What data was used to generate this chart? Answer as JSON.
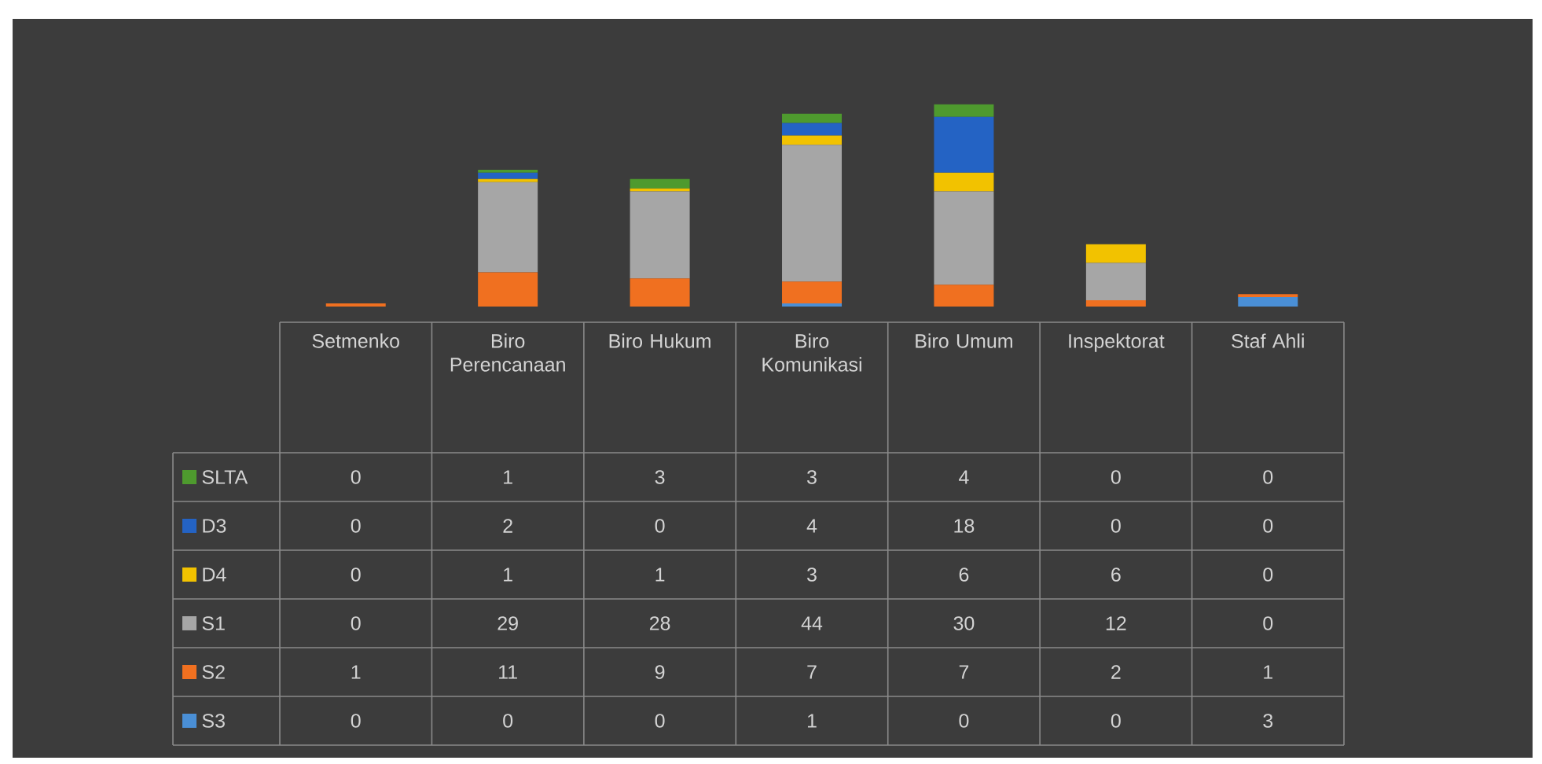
{
  "chart_data": {
    "type": "bar",
    "stacked": true,
    "data_labels": true,
    "legend": "bottom",
    "categories": [
      "Setmenko",
      "Biro Perencanaan",
      "Biro Hukum",
      "Biro Komunikasi",
      "Biro Umum",
      "Inspektorat",
      "Staf Ahli"
    ],
    "series": [
      {
        "name": "S3",
        "color": "#4a8fd6",
        "values": [
          0,
          0,
          0,
          1,
          0,
          0,
          3
        ]
      },
      {
        "name": "S2",
        "color": "#f07020",
        "values": [
          1,
          11,
          9,
          7,
          7,
          2,
          1
        ]
      },
      {
        "name": "S1",
        "color": "#a6a6a6",
        "values": [
          0,
          29,
          28,
          44,
          30,
          12,
          0
        ]
      },
      {
        "name": "D4",
        "color": "#f2c200",
        "values": [
          0,
          1,
          1,
          3,
          6,
          6,
          0
        ]
      },
      {
        "name": "D3",
        "color": "#2463c4",
        "values": [
          0,
          2,
          0,
          4,
          18,
          0,
          0
        ]
      },
      {
        "name": "SLTA",
        "color": "#4e9a2e",
        "values": [
          0,
          1,
          3,
          3,
          4,
          0,
          0
        ]
      }
    ]
  }
}
